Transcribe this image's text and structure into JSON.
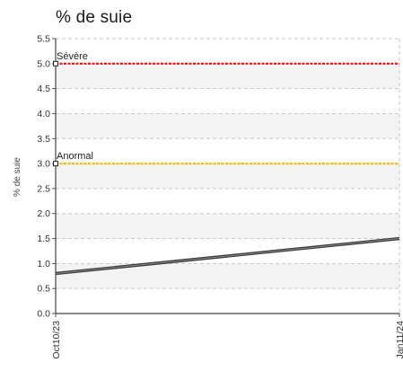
{
  "chart_data": {
    "type": "line",
    "title": "% de suie",
    "xlabel": "",
    "ylabel": "% de suie",
    "x": [
      "Oct10/23",
      "Jan11/24"
    ],
    "xlim": [
      "Oct10/23",
      "Jan11/24"
    ],
    "ylim": [
      0.0,
      5.5
    ],
    "yticks": [
      "0.0",
      "0.5",
      "1.0",
      "1.5",
      "2.0",
      "2.5",
      "3.0",
      "3.5",
      "4.0",
      "4.5",
      "5.0",
      "5.5"
    ],
    "grid": true,
    "series": [
      {
        "values": [
          0.8,
          1.5
        ],
        "color": "#555555"
      }
    ],
    "thresholds": [
      {
        "label": "Sévère",
        "value": 5.0,
        "color": "#ee1111"
      },
      {
        "label": "Anormal",
        "value": 3.0,
        "color": "#f2c200"
      }
    ]
  }
}
